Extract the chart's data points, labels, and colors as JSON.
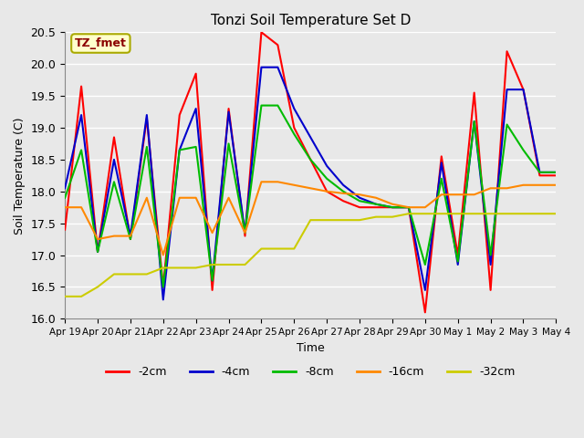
{
  "title": "Tonzi Soil Temperature Set D",
  "xlabel": "Time",
  "ylabel": "Soil Temperature (C)",
  "ylim": [
    16.0,
    20.5
  ],
  "xlim": [
    0,
    15
  ],
  "annotation_text": "TZ_fmet",
  "annotation_color": "#8B0000",
  "annotation_bg": "#FFFFCC",
  "annotation_border": "#AAAA00",
  "x_ticks": [
    "Apr 19",
    "Apr 20",
    "Apr 21",
    "Apr 22",
    "Apr 23",
    "Apr 24",
    "Apr 25",
    "Apr 26",
    "Apr 27",
    "Apr 28",
    "Apr 29",
    "Apr 30",
    "May 1",
    "May 2",
    "May 3",
    "May 4"
  ],
  "yticks": [
    16.0,
    16.5,
    17.0,
    17.5,
    18.0,
    18.5,
    19.0,
    19.5,
    20.0,
    20.5
  ],
  "colors": {
    "-2cm": "#FF0000",
    "-4cm": "#0000CC",
    "-8cm": "#00BB00",
    "-16cm": "#FF8800",
    "-32cm": "#CCCC00"
  },
  "data_x": {
    "-2cm": [
      0,
      0.5,
      1,
      1.5,
      2,
      2.5,
      3,
      3.5,
      4,
      4.5,
      5,
      5.5,
      6,
      6.5,
      7,
      7.5,
      8,
      8.5,
      9,
      9.5,
      10,
      10.5,
      11,
      11.5,
      12,
      12.5,
      13,
      13.5,
      14,
      14.5,
      15
    ],
    "-4cm": [
      0,
      0.5,
      1,
      1.5,
      2,
      2.5,
      3,
      3.5,
      4,
      4.5,
      5,
      5.5,
      6,
      6.5,
      7,
      7.5,
      8,
      8.5,
      9,
      9.5,
      10,
      10.5,
      11,
      11.5,
      12,
      12.5,
      13,
      13.5,
      14,
      14.5,
      15
    ],
    "-8cm": [
      0,
      0.5,
      1,
      1.5,
      2,
      2.5,
      3,
      3.5,
      4,
      4.5,
      5,
      5.5,
      6,
      6.5,
      7,
      7.5,
      8,
      8.5,
      9,
      9.5,
      10,
      10.5,
      11,
      11.5,
      12,
      12.5,
      13,
      13.5,
      14,
      14.5,
      15
    ],
    "-16cm": [
      0,
      0.5,
      1,
      1.5,
      2,
      2.5,
      3,
      3.5,
      4,
      4.5,
      5,
      5.5,
      6,
      6.5,
      7,
      7.5,
      8,
      8.5,
      9,
      9.5,
      10,
      10.5,
      11,
      11.5,
      12,
      12.5,
      13,
      13.5,
      14,
      14.5,
      15
    ],
    "-32cm": [
      0,
      0.5,
      1,
      1.5,
      2,
      2.5,
      3,
      3.5,
      4,
      4.5,
      5,
      5.5,
      6,
      6.5,
      7,
      7.5,
      8,
      8.5,
      9,
      9.5,
      10,
      10.5,
      11,
      11.5,
      12,
      12.5,
      13,
      13.5,
      14,
      14.5,
      15
    ]
  },
  "data_y": {
    "-2cm": [
      17.4,
      19.65,
      17.05,
      18.85,
      17.25,
      19.15,
      16.5,
      19.2,
      19.85,
      16.45,
      19.3,
      17.3,
      20.5,
      20.3,
      19.0,
      18.5,
      18.0,
      17.85,
      17.75,
      17.75,
      17.75,
      17.75,
      16.1,
      18.55,
      17.0,
      19.55,
      16.45,
      20.2,
      19.6,
      18.25,
      18.25
    ],
    "-4cm": [
      18.05,
      19.2,
      17.05,
      18.5,
      17.3,
      19.2,
      16.3,
      18.65,
      19.3,
      16.6,
      19.25,
      17.35,
      19.95,
      19.95,
      19.3,
      18.85,
      18.4,
      18.1,
      17.9,
      17.8,
      17.75,
      17.75,
      16.45,
      18.45,
      16.85,
      19.1,
      16.85,
      19.6,
      19.6,
      18.3,
      18.3
    ],
    "-8cm": [
      17.9,
      18.65,
      17.05,
      18.15,
      17.25,
      18.7,
      16.5,
      18.65,
      18.7,
      16.6,
      18.75,
      17.35,
      19.35,
      19.35,
      18.9,
      18.5,
      18.2,
      18.0,
      17.85,
      17.8,
      17.75,
      17.75,
      16.85,
      18.2,
      16.9,
      19.1,
      17.0,
      19.05,
      18.65,
      18.3,
      18.3
    ],
    "-16cm": [
      17.75,
      17.75,
      17.25,
      17.3,
      17.3,
      17.9,
      17.0,
      17.9,
      17.9,
      17.35,
      17.9,
      17.35,
      18.15,
      18.15,
      18.1,
      18.05,
      18.0,
      17.97,
      17.95,
      17.9,
      17.8,
      17.75,
      17.75,
      17.95,
      17.95,
      17.95,
      18.05,
      18.05,
      18.1,
      18.1,
      18.1
    ],
    "-32cm": [
      16.35,
      16.35,
      16.5,
      16.7,
      16.7,
      16.7,
      16.8,
      16.8,
      16.8,
      16.85,
      16.85,
      16.85,
      17.1,
      17.1,
      17.1,
      17.55,
      17.55,
      17.55,
      17.55,
      17.6,
      17.6,
      17.65,
      17.65,
      17.65,
      17.65,
      17.65,
      17.65,
      17.65,
      17.65,
      17.65,
      17.65
    ]
  },
  "linewidth": 1.5,
  "legend_labels": [
    "-2cm",
    "-4cm",
    "-8cm",
    "-16cm",
    "-32cm"
  ]
}
